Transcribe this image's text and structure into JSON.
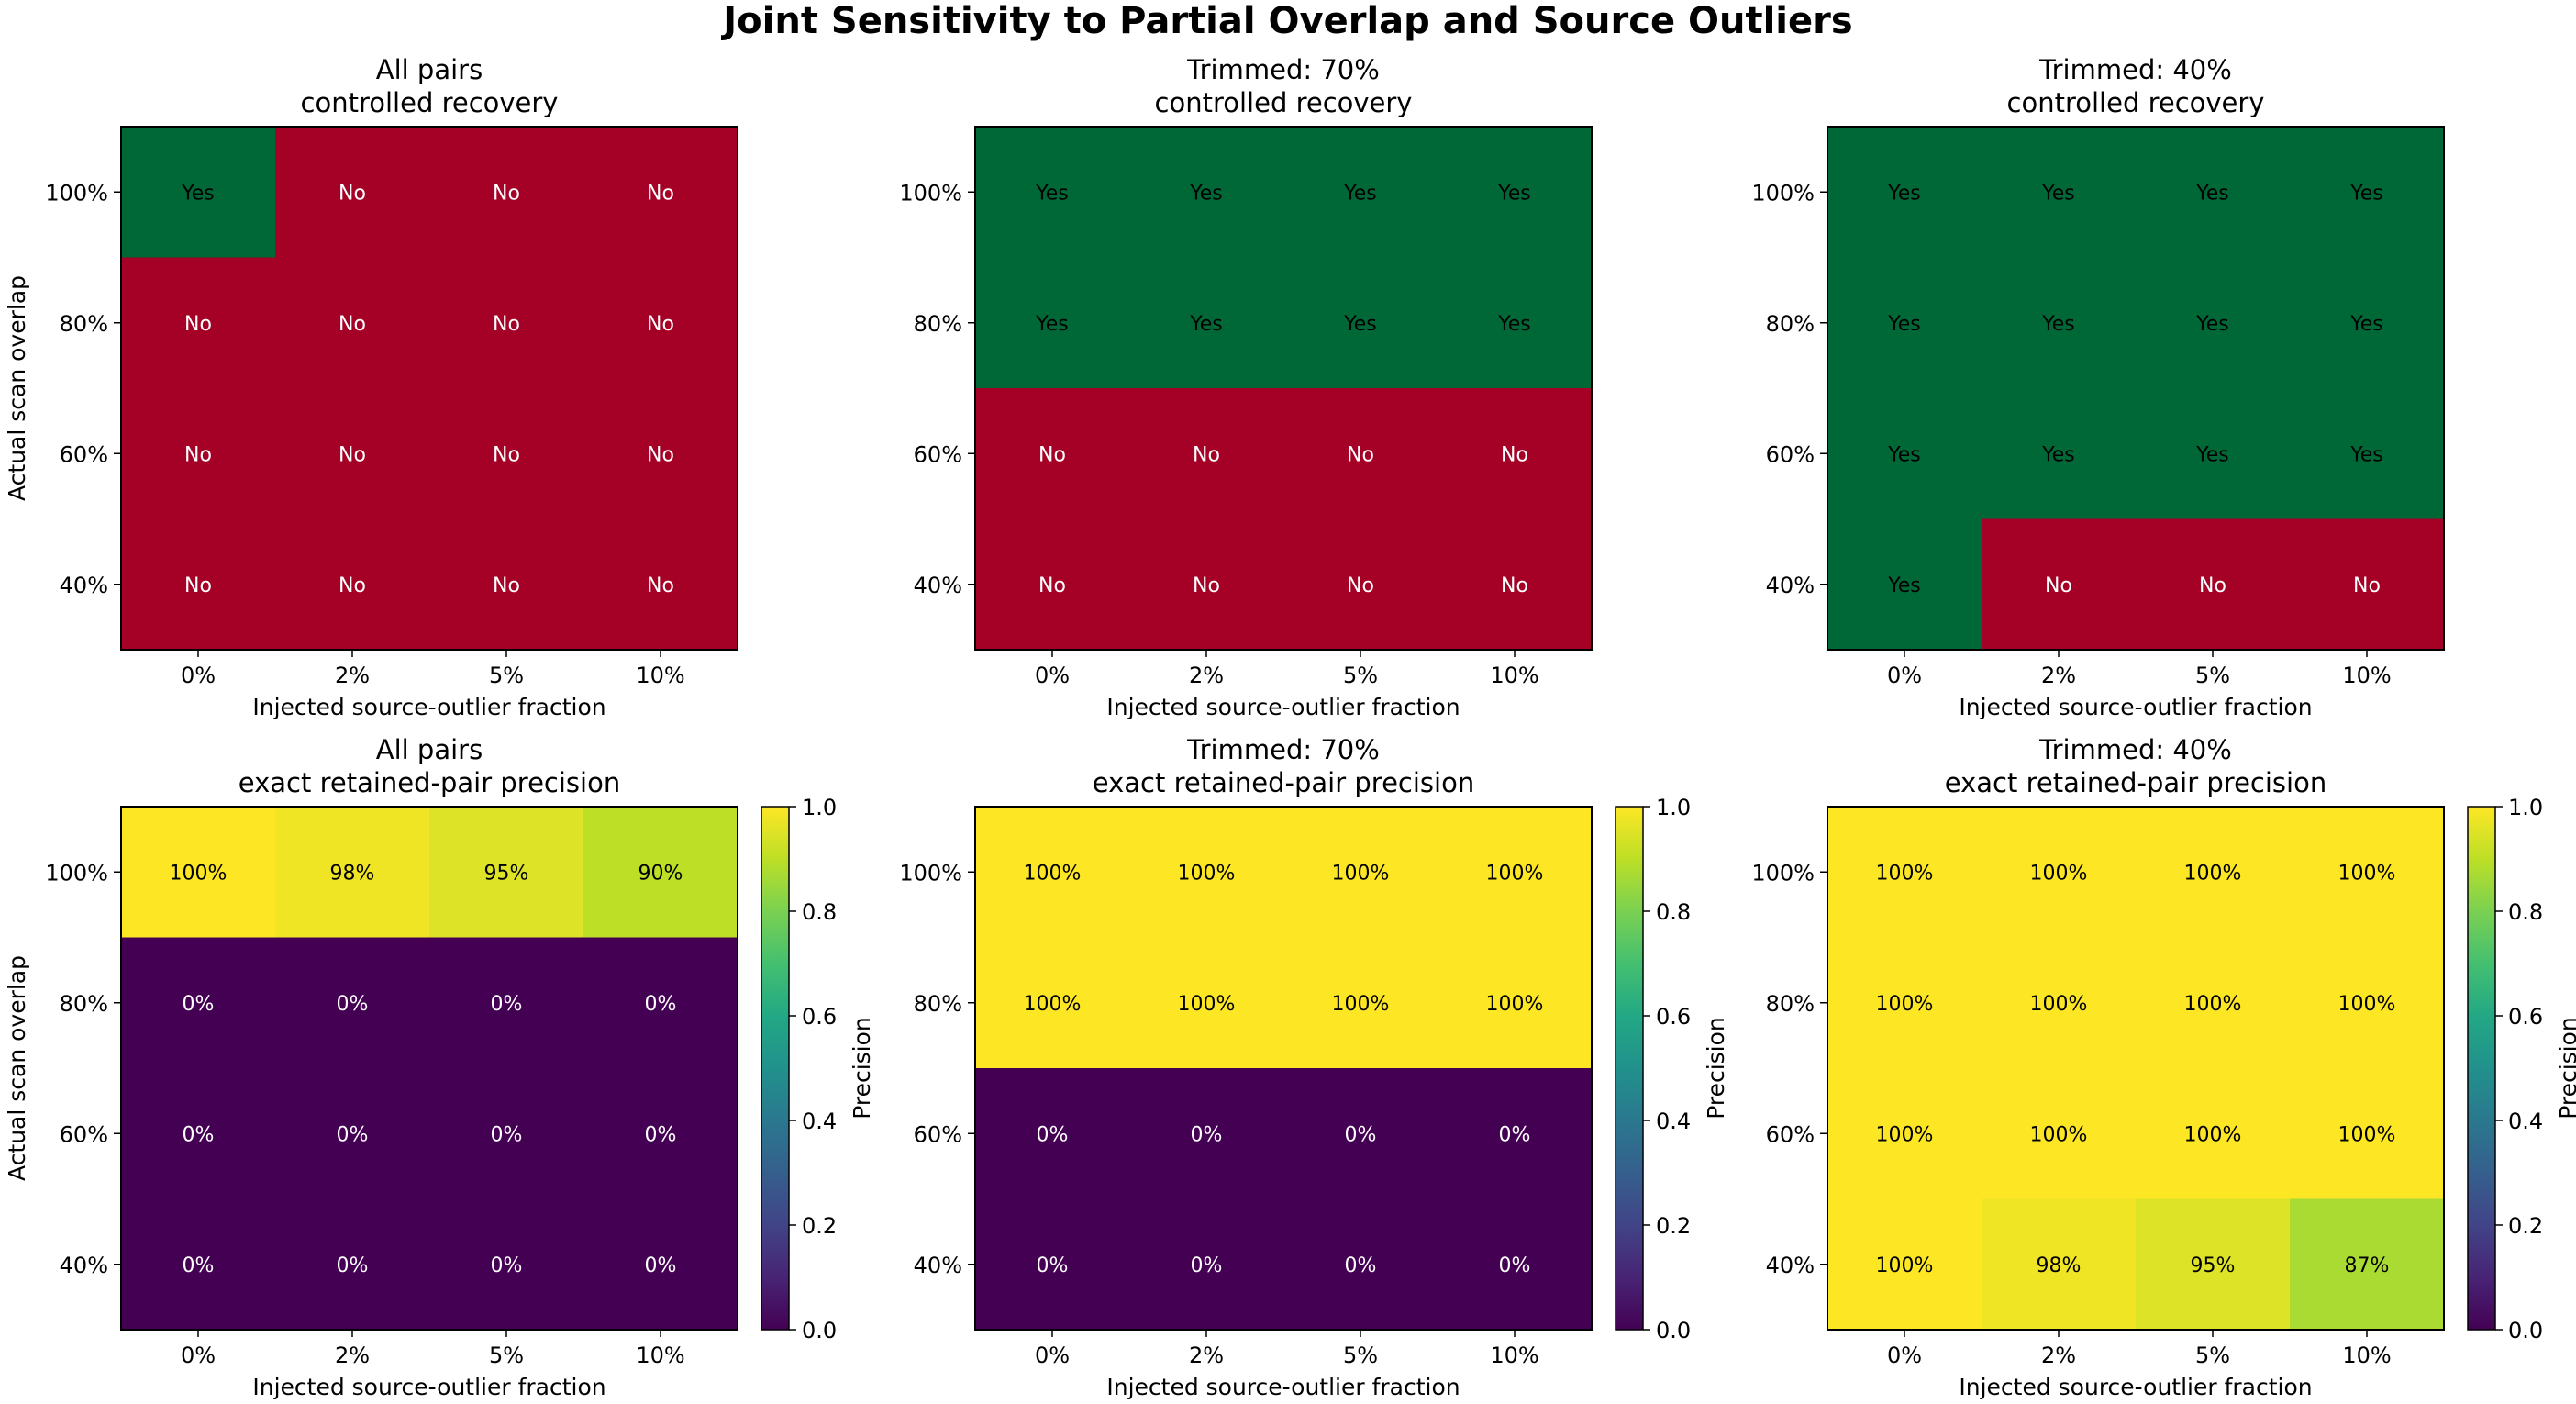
{
  "suptitle": "Joint Sensitivity to Partial Overlap and Source Outliers",
  "colors": {
    "yes": "#006837",
    "no": "#a50026"
  },
  "chart_data": [
    {
      "type": "heatmap",
      "title": "All pairs\ncontrolled recovery",
      "xlabel": "Injected source-outlier fraction",
      "ylabel": "Actual scan overlap",
      "x_categories": [
        "0%",
        "2%",
        "5%",
        "10%"
      ],
      "y_categories": [
        "100%",
        "80%",
        "60%",
        "40%"
      ],
      "values": [
        [
          1,
          0,
          0,
          0
        ],
        [
          0,
          0,
          0,
          0
        ],
        [
          0,
          0,
          0,
          0
        ],
        [
          0,
          0,
          0,
          0
        ]
      ],
      "labels": [
        [
          "Yes",
          "No",
          "No",
          "No"
        ],
        [
          "No",
          "No",
          "No",
          "No"
        ],
        [
          "No",
          "No",
          "No",
          "No"
        ],
        [
          "No",
          "No",
          "No",
          "No"
        ]
      ]
    },
    {
      "type": "heatmap",
      "title": "Trimmed: 70%\ncontrolled recovery",
      "xlabel": "Injected source-outlier fraction",
      "ylabel": "",
      "x_categories": [
        "0%",
        "2%",
        "5%",
        "10%"
      ],
      "y_categories": [
        "100%",
        "80%",
        "60%",
        "40%"
      ],
      "values": [
        [
          1,
          1,
          1,
          1
        ],
        [
          1,
          1,
          1,
          1
        ],
        [
          0,
          0,
          0,
          0
        ],
        [
          0,
          0,
          0,
          0
        ]
      ],
      "labels": [
        [
          "Yes",
          "Yes",
          "Yes",
          "Yes"
        ],
        [
          "Yes",
          "Yes",
          "Yes",
          "Yes"
        ],
        [
          "No",
          "No",
          "No",
          "No"
        ],
        [
          "No",
          "No",
          "No",
          "No"
        ]
      ]
    },
    {
      "type": "heatmap",
      "title": "Trimmed: 40%\ncontrolled recovery",
      "xlabel": "Injected source-outlier fraction",
      "ylabel": "",
      "x_categories": [
        "0%",
        "2%",
        "5%",
        "10%"
      ],
      "y_categories": [
        "100%",
        "80%",
        "60%",
        "40%"
      ],
      "values": [
        [
          1,
          1,
          1,
          1
        ],
        [
          1,
          1,
          1,
          1
        ],
        [
          1,
          1,
          1,
          1
        ],
        [
          1,
          0,
          0,
          0
        ]
      ],
      "labels": [
        [
          "Yes",
          "Yes",
          "Yes",
          "Yes"
        ],
        [
          "Yes",
          "Yes",
          "Yes",
          "Yes"
        ],
        [
          "Yes",
          "Yes",
          "Yes",
          "Yes"
        ],
        [
          "Yes",
          "No",
          "No",
          "No"
        ]
      ]
    },
    {
      "type": "heatmap",
      "title": "All pairs\nexact retained-pair precision",
      "xlabel": "Injected source-outlier fraction",
      "ylabel": "Actual scan overlap",
      "x_categories": [
        "0%",
        "2%",
        "5%",
        "10%"
      ],
      "y_categories": [
        "100%",
        "80%",
        "60%",
        "40%"
      ],
      "values": [
        [
          1.0,
          0.98,
          0.95,
          0.9
        ],
        [
          0,
          0,
          0,
          0
        ],
        [
          0,
          0,
          0,
          0
        ],
        [
          0,
          0,
          0,
          0
        ]
      ],
      "labels": [
        [
          "100%",
          "98%",
          "95%",
          "90%"
        ],
        [
          "0%",
          "0%",
          "0%",
          "0%"
        ],
        [
          "0%",
          "0%",
          "0%",
          "0%"
        ],
        [
          "0%",
          "0%",
          "0%",
          "0%"
        ]
      ],
      "colorbar": {
        "label": "Precision",
        "range": [
          0.0,
          1.0
        ],
        "ticks": [
          "0.0",
          "0.2",
          "0.4",
          "0.6",
          "0.8",
          "1.0"
        ]
      }
    },
    {
      "type": "heatmap",
      "title": "Trimmed: 70%\nexact retained-pair precision",
      "xlabel": "Injected source-outlier fraction",
      "ylabel": "",
      "x_categories": [
        "0%",
        "2%",
        "5%",
        "10%"
      ],
      "y_categories": [
        "100%",
        "80%",
        "60%",
        "40%"
      ],
      "values": [
        [
          1,
          1,
          1,
          1
        ],
        [
          1,
          1,
          1,
          1
        ],
        [
          0,
          0,
          0,
          0
        ],
        [
          0,
          0,
          0,
          0
        ]
      ],
      "labels": [
        [
          "100%",
          "100%",
          "100%",
          "100%"
        ],
        [
          "100%",
          "100%",
          "100%",
          "100%"
        ],
        [
          "0%",
          "0%",
          "0%",
          "0%"
        ],
        [
          "0%",
          "0%",
          "0%",
          "0%"
        ]
      ],
      "colorbar": {
        "label": "Precision",
        "range": [
          0.0,
          1.0
        ],
        "ticks": [
          "0.0",
          "0.2",
          "0.4",
          "0.6",
          "0.8",
          "1.0"
        ]
      }
    },
    {
      "type": "heatmap",
      "title": "Trimmed: 40%\nexact retained-pair precision",
      "xlabel": "Injected source-outlier fraction",
      "ylabel": "",
      "x_categories": [
        "0%",
        "2%",
        "5%",
        "10%"
      ],
      "y_categories": [
        "100%",
        "80%",
        "60%",
        "40%"
      ],
      "values": [
        [
          1,
          1,
          1,
          1
        ],
        [
          1,
          1,
          1,
          1
        ],
        [
          1,
          1,
          1,
          1
        ],
        [
          1.0,
          0.98,
          0.95,
          0.87
        ]
      ],
      "labels": [
        [
          "100%",
          "100%",
          "100%",
          "100%"
        ],
        [
          "100%",
          "100%",
          "100%",
          "100%"
        ],
        [
          "100%",
          "100%",
          "100%",
          "100%"
        ],
        [
          "100%",
          "98%",
          "95%",
          "87%"
        ]
      ],
      "colorbar": {
        "label": "Precision",
        "range": [
          0.0,
          1.0
        ],
        "ticks": [
          "0.0",
          "0.2",
          "0.4",
          "0.6",
          "0.8",
          "1.0"
        ]
      }
    }
  ]
}
